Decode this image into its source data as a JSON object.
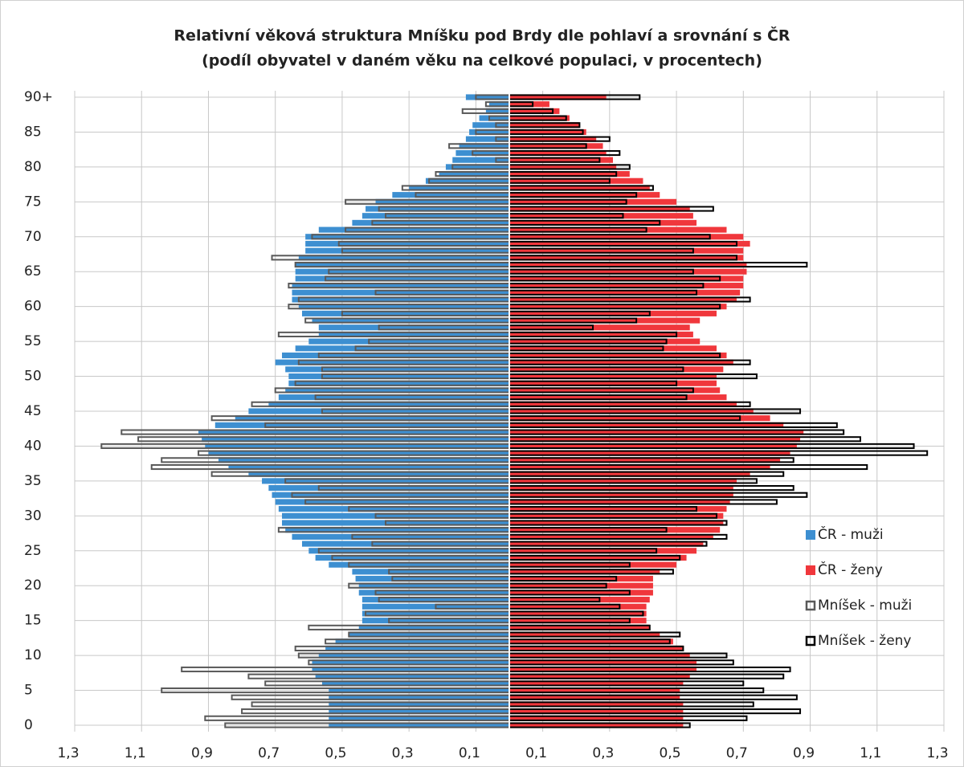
{
  "chart_data": {
    "type": "pyramid",
    "title": "Relativní věková struktura Mníšku pod Brdy dle pohlaví a srovnání s ČR",
    "subtitle": "(podíl obyvatel v daném věku na celkové populaci, v procentech)",
    "categories": [
      "0",
      null,
      null,
      null,
      null,
      "5",
      null,
      null,
      null,
      null,
      "10",
      null,
      null,
      null,
      null,
      "15",
      null,
      null,
      null,
      null,
      "20",
      null,
      null,
      null,
      null,
      "25",
      null,
      null,
      null,
      null,
      "30",
      null,
      null,
      null,
      null,
      "35",
      null,
      null,
      null,
      null,
      "40",
      null,
      null,
      null,
      null,
      "45",
      null,
      null,
      null,
      null,
      "50",
      null,
      null,
      null,
      null,
      "55",
      null,
      null,
      null,
      null,
      "60",
      null,
      null,
      null,
      null,
      "65",
      null,
      null,
      null,
      null,
      "70",
      null,
      null,
      null,
      null,
      "75",
      null,
      null,
      null,
      null,
      "80",
      null,
      null,
      null,
      null,
      "85",
      null,
      null,
      null,
      null,
      "90+"
    ],
    "xlim": [
      -1.3,
      1.3
    ],
    "xticks": [
      {
        "value": -1.3,
        "label": "1,3"
      },
      {
        "value": -1.1,
        "label": "1,1"
      },
      {
        "value": -0.9,
        "label": "0,9"
      },
      {
        "value": -0.7,
        "label": "0,7"
      },
      {
        "value": -0.5,
        "label": "0,5"
      },
      {
        "value": -0.3,
        "label": "0,3"
      },
      {
        "value": -0.1,
        "label": "0,1"
      },
      {
        "value": 0.1,
        "label": "0,1"
      },
      {
        "value": 0.3,
        "label": "0,3"
      },
      {
        "value": 0.5,
        "label": "0,5"
      },
      {
        "value": 0.7,
        "label": "0,7"
      },
      {
        "value": 0.9,
        "label": "0,9"
      },
      {
        "value": 1.1,
        "label": "1,1"
      },
      {
        "value": 1.3,
        "label": "1,3"
      }
    ],
    "grid": true,
    "legend": "right",
    "series": [
      {
        "name": "ČR - muži",
        "color": "#3d8fd1",
        "side": "left",
        "style": "fill",
        "values": [
          0.54,
          0.54,
          0.54,
          0.54,
          0.54,
          0.54,
          0.56,
          0.58,
          0.59,
          0.59,
          0.57,
          0.55,
          0.52,
          0.48,
          0.45,
          0.44,
          0.44,
          0.44,
          0.44,
          0.45,
          0.45,
          0.46,
          0.47,
          0.54,
          0.58,
          0.6,
          0.62,
          0.65,
          0.67,
          0.68,
          0.68,
          0.69,
          0.7,
          0.71,
          0.72,
          0.74,
          0.78,
          0.84,
          0.87,
          0.9,
          0.91,
          0.92,
          0.93,
          0.88,
          0.82,
          0.78,
          0.72,
          0.69,
          0.67,
          0.66,
          0.66,
          0.67,
          0.7,
          0.68,
          0.64,
          0.6,
          0.57,
          0.57,
          0.59,
          0.62,
          0.63,
          0.65,
          0.65,
          0.65,
          0.64,
          0.64,
          0.64,
          0.63,
          0.61,
          0.61,
          0.61,
          0.57,
          0.47,
          0.44,
          0.43,
          0.4,
          0.35,
          0.3,
          0.25,
          0.21,
          0.19,
          0.17,
          0.16,
          0.15,
          0.13,
          0.12,
          0.11,
          0.09,
          0.07,
          0.06,
          0.13
        ]
      },
      {
        "name": "ČR - ženy",
        "color": "#f0373c",
        "side": "right",
        "style": "fill",
        "values": [
          0.52,
          0.52,
          0.52,
          0.52,
          0.51,
          0.51,
          0.52,
          0.54,
          0.56,
          0.56,
          0.54,
          0.52,
          0.49,
          0.45,
          0.42,
          0.41,
          0.41,
          0.41,
          0.42,
          0.43,
          0.43,
          0.43,
          0.45,
          0.5,
          0.53,
          0.56,
          0.58,
          0.61,
          0.63,
          0.64,
          0.64,
          0.65,
          0.66,
          0.67,
          0.67,
          0.68,
          0.72,
          0.78,
          0.81,
          0.84,
          0.86,
          0.87,
          0.88,
          0.82,
          0.78,
          0.73,
          0.68,
          0.65,
          0.63,
          0.62,
          0.62,
          0.64,
          0.67,
          0.65,
          0.62,
          0.57,
          0.55,
          0.54,
          0.57,
          0.62,
          0.65,
          0.68,
          0.69,
          0.7,
          0.7,
          0.71,
          0.71,
          0.7,
          0.7,
          0.72,
          0.7,
          0.65,
          0.56,
          0.55,
          0.54,
          0.5,
          0.45,
          0.42,
          0.4,
          0.36,
          0.32,
          0.31,
          0.29,
          0.28,
          0.26,
          0.23,
          0.21,
          0.18,
          0.15,
          0.12,
          0.29
        ]
      },
      {
        "name": "Mníšek - muži",
        "color": "#595959",
        "side": "left",
        "style": "outline",
        "values": [
          0.85,
          0.91,
          0.8,
          0.77,
          0.83,
          1.04,
          0.73,
          0.78,
          0.98,
          0.6,
          0.63,
          0.64,
          0.55,
          0.48,
          0.6,
          0.36,
          0.43,
          0.22,
          0.39,
          0.4,
          0.48,
          0.35,
          0.36,
          0.48,
          0.53,
          0.57,
          0.41,
          0.47,
          0.69,
          0.37,
          0.4,
          0.48,
          0.61,
          0.65,
          0.57,
          0.67,
          0.89,
          1.07,
          1.04,
          0.93,
          1.22,
          1.11,
          1.16,
          0.73,
          0.89,
          0.56,
          0.77,
          0.58,
          0.7,
          0.64,
          0.56,
          0.56,
          0.63,
          0.57,
          0.46,
          0.42,
          0.69,
          0.39,
          0.61,
          0.5,
          0.66,
          0.63,
          0.4,
          0.66,
          0.55,
          0.54,
          0.64,
          0.71,
          0.5,
          0.51,
          0.59,
          0.49,
          0.41,
          0.37,
          0.39,
          0.49,
          0.28,
          0.32,
          0.24,
          0.22,
          0.17,
          0.04,
          0.11,
          0.18,
          0.04,
          0.1,
          0.04,
          0.06,
          0.14,
          0.07,
          0.1
        ]
      },
      {
        "name": "Mníšek - ženy",
        "color": "#000000",
        "side": "right",
        "style": "outline",
        "values": [
          0.54,
          0.71,
          0.87,
          0.73,
          0.86,
          0.76,
          0.7,
          0.82,
          0.84,
          0.67,
          0.65,
          0.52,
          0.48,
          0.51,
          0.42,
          0.36,
          0.4,
          0.33,
          0.27,
          0.36,
          0.29,
          0.32,
          0.49,
          0.36,
          0.51,
          0.44,
          0.59,
          0.65,
          0.47,
          0.65,
          0.62,
          0.56,
          0.8,
          0.89,
          0.85,
          0.74,
          0.82,
          1.07,
          0.85,
          1.25,
          1.21,
          1.05,
          1.0,
          0.98,
          0.69,
          0.87,
          0.72,
          0.53,
          0.55,
          0.5,
          0.74,
          0.52,
          0.72,
          0.63,
          0.46,
          0.47,
          0.5,
          0.25,
          0.38,
          0.42,
          0.63,
          0.72,
          0.56,
          0.58,
          0.63,
          0.55,
          0.89,
          0.68,
          0.55,
          0.68,
          0.6,
          0.41,
          0.45,
          0.34,
          0.61,
          0.35,
          0.38,
          0.43,
          0.3,
          0.32,
          0.36,
          0.27,
          0.33,
          0.23,
          0.3,
          0.22,
          0.21,
          0.17,
          0.13,
          0.07,
          0.39
        ]
      }
    ]
  }
}
